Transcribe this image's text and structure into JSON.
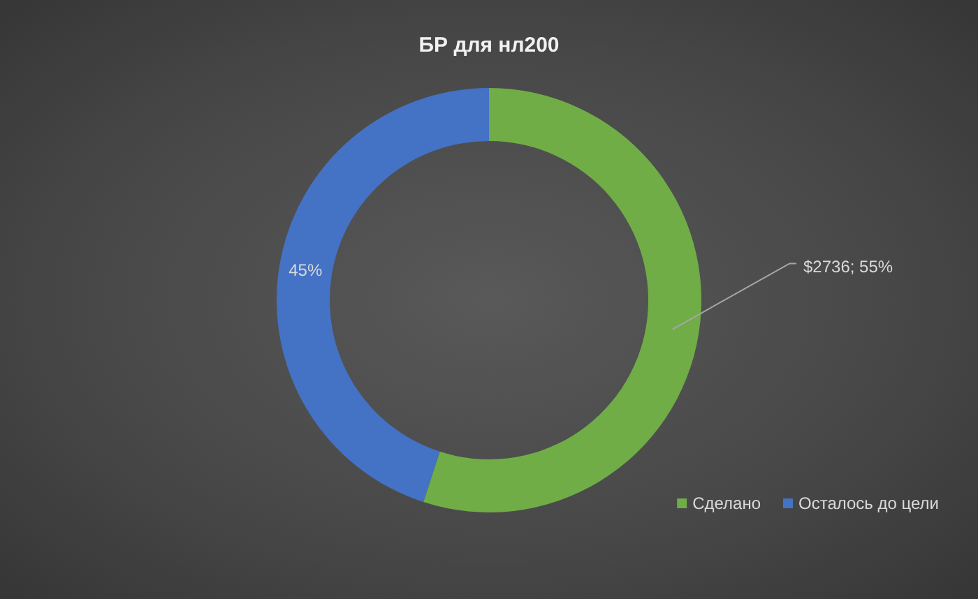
{
  "chart_data": {
    "type": "donut",
    "title": "БР для нл200",
    "categories": [
      "Сделано",
      "Осталось до цели"
    ],
    "values": [
      55,
      45
    ],
    "colors": [
      "#70ad47",
      "#4472c4"
    ],
    "value_labels": [
      "$2736; 55%",
      "45%"
    ],
    "legend": "bottom right"
  }
}
